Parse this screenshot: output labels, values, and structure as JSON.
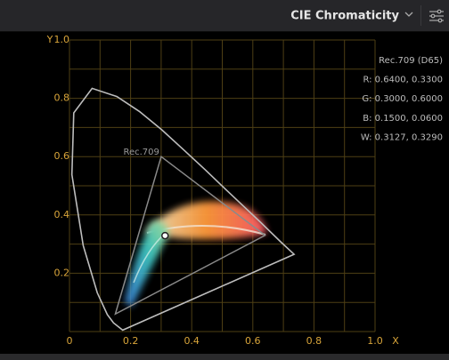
{
  "header": {
    "title": "CIE Chromaticity"
  },
  "scope": {
    "type": "scatter",
    "xlabel": "X",
    "ylabel": "Y",
    "xlim": [
      0,
      1
    ],
    "ylim": [
      0,
      1
    ],
    "xticks": [
      {
        "value": 0,
        "label": "0"
      },
      0.2,
      0.4,
      0.6,
      0.8,
      {
        "value": 1,
        "label": "1.0"
      }
    ],
    "yticks": [
      0.2,
      0.4,
      0.6,
      0.8,
      {
        "value": 1,
        "label": "1.0"
      }
    ],
    "grid": [
      0,
      0.1,
      0.2,
      0.3,
      0.4,
      0.5,
      0.6,
      0.7,
      0.8,
      0.9,
      1
    ],
    "gamut": {
      "label": "Rec.709",
      "points": [
        {
          "x": 0.64,
          "y": 0.33
        },
        {
          "x": 0.3,
          "y": 0.6
        },
        {
          "x": 0.15,
          "y": 0.06
        }
      ]
    },
    "white_point": {
      "x": 0.3127,
      "y": 0.329
    },
    "info": [
      "Rec.709 (D65)",
      "R: 0.6400, 0.3300",
      "G: 0.3000, 0.6000",
      "B: 0.1500, 0.0600",
      "W: 0.3127, 0.3290"
    ]
  }
}
